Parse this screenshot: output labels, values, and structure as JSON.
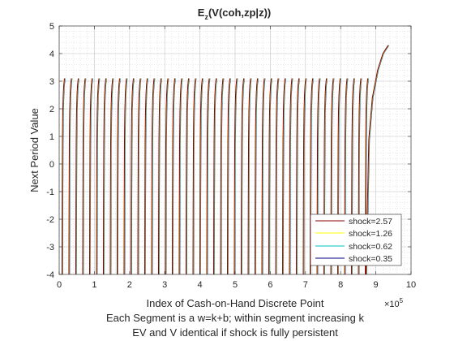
{
  "chart_data": {
    "type": "line",
    "title_main": "E",
    "title_sub": "z",
    "title_rest": "(V(coh,zp|z))",
    "xlabel": "Index of Cash-on-Hand Discrete Point",
    "xlabel_line2": "Each Segment is a w=k+b; within segment increasing k",
    "xlabel_line3": "EV and V identical if shock is fully persistent",
    "ylabel": "Next Period Value",
    "x_multiplier_base": "×10",
    "x_multiplier_exp": "5",
    "xlim": [
      0,
      10
    ],
    "ylim": [
      -4,
      5
    ],
    "x_ticks": [
      "0",
      "1",
      "2",
      "3",
      "4",
      "5",
      "6",
      "7",
      "8",
      "9",
      "10"
    ],
    "y_ticks": [
      "-4",
      "-3",
      "-2",
      "-1",
      "0",
      "1",
      "2",
      "3",
      "4",
      "5"
    ],
    "grid": true,
    "minor_grid": true,
    "legend_position": "bottom-right",
    "segments": {
      "count": 45,
      "x_start": 0.08,
      "x_end": 8.7,
      "y_bottom": -4,
      "y_top": 3.1
    },
    "final_segment": {
      "x": [
        8.72,
        8.8,
        8.9,
        9.05,
        9.2,
        9.35
      ],
      "y": [
        -4,
        0.9,
        2.4,
        3.4,
        4.0,
        4.3
      ]
    },
    "series": [
      {
        "name": "shock=2.57",
        "color": "#8b0000"
      },
      {
        "name": "shock=1.26",
        "color": "#ffff00"
      },
      {
        "name": "shock=0.62",
        "color": "#00bfbf"
      },
      {
        "name": "shock=0.35",
        "color": "#000080"
      }
    ]
  }
}
